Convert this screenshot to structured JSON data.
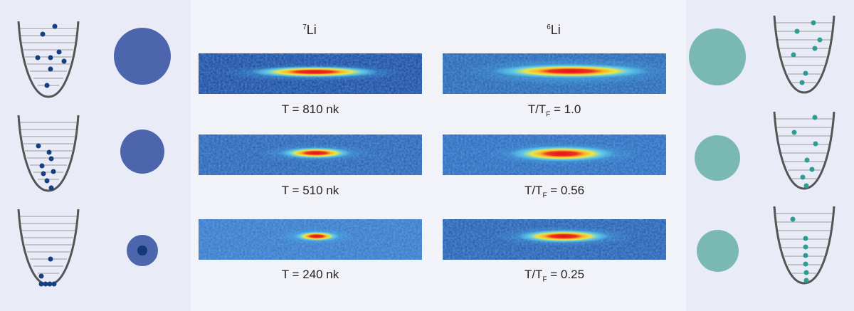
{
  "colors": {
    "boson_blue": "#3f5fa8",
    "boson_dot": "#153e7e",
    "fermion_teal": "#79b9b2",
    "fermion_dot": "#2a9e93",
    "well_line": "#555555"
  },
  "columns": [
    {
      "isotope_mass": "7",
      "isotope_symbol": "Li",
      "rows": [
        {
          "prefix": "T = 810 nk",
          "sub": "",
          "suffix": ""
        },
        {
          "prefix": "T = 510 nk",
          "sub": "",
          "suffix": ""
        },
        {
          "prefix": "T = 240 nk",
          "sub": "",
          "suffix": ""
        }
      ]
    },
    {
      "isotope_mass": "6",
      "isotope_symbol": "Li",
      "rows": [
        {
          "prefix": "T/T",
          "sub": "F",
          "suffix": " = 1.0"
        },
        {
          "prefix": "T/T",
          "sub": "F",
          "suffix": " = 0.56"
        },
        {
          "prefix": "T/T",
          "sub": "F",
          "suffix": " = 0.25"
        }
      ]
    }
  ]
}
